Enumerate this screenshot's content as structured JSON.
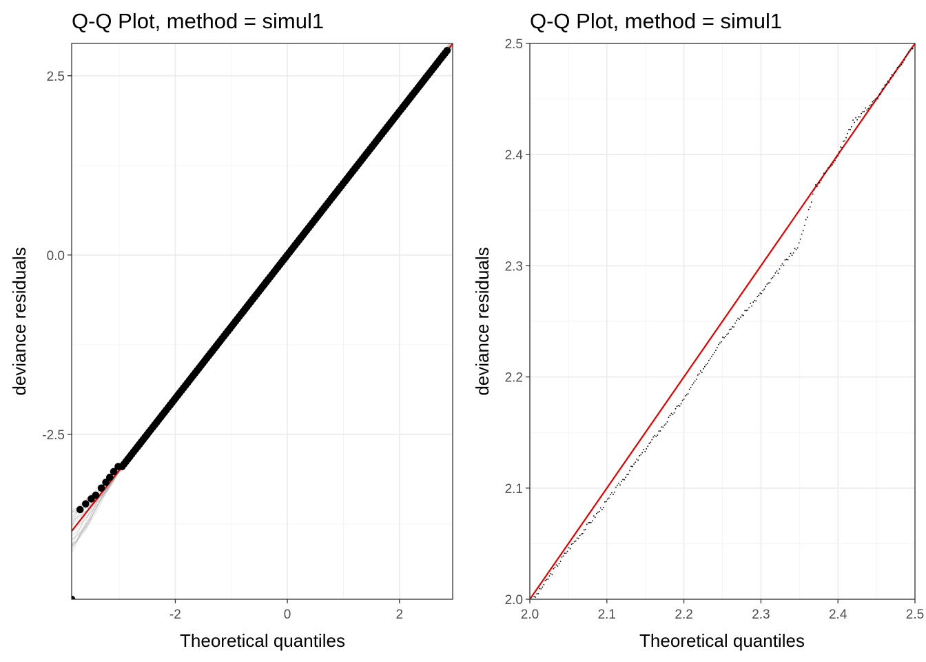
{
  "chart_data": [
    {
      "type": "scatter",
      "title": "Q-Q Plot, method = simul1",
      "xlabel": "Theoretical quantiles",
      "ylabel": "deviance residuals",
      "xlim": [
        -3.85,
        2.95
      ],
      "ylim": [
        -4.8,
        2.95
      ],
      "xticks": [
        -2,
        0,
        2
      ],
      "yticks": [
        2.5,
        0.0,
        -2.5
      ],
      "xtick_labels": [
        "-2",
        "0",
        "2"
      ],
      "ytick_labels": [
        "2.5",
        "0.0",
        "-2.5"
      ],
      "grid": true,
      "reference_line": {
        "slope": 1,
        "intercept": 0,
        "color": "#e00000"
      },
      "simulation_band_color": "#9a9a9a",
      "point_color": "#000000",
      "points": {
        "x": [
          -3.85,
          -3.7,
          -3.6,
          -3.5,
          -3.42,
          -3.32,
          -3.24,
          -3.17,
          -3.1,
          -3.02
        ],
        "y": [
          -4.8,
          -3.55,
          -3.47,
          -3.4,
          -3.35,
          -3.25,
          -3.17,
          -3.1,
          -3.02,
          -2.95
        ],
        "regular_sequence": {
          "from": -2.95,
          "to": 2.85,
          "count": 170,
          "offset": 0.0
        }
      }
    },
    {
      "type": "scatter",
      "title": "Q-Q Plot, method = simul1",
      "xlabel": "Theoretical quantiles",
      "ylabel": "deviance residuals",
      "xlim": [
        2.0,
        2.5
      ],
      "ylim": [
        2.0,
        2.5
      ],
      "xticks": [
        2.0,
        2.1,
        2.2,
        2.3,
        2.4,
        2.5
      ],
      "yticks": [
        2.0,
        2.1,
        2.2,
        2.3,
        2.4,
        2.5
      ],
      "xtick_labels": [
        "2.0",
        "2.1",
        "2.2",
        "2.3",
        "2.4",
        "2.5"
      ],
      "ytick_labels": [
        "2.0",
        "2.1",
        "2.2",
        "2.3",
        "2.4",
        "2.5"
      ],
      "grid": true,
      "reference_line": {
        "slope": 1,
        "intercept": 0,
        "color": "#e00000"
      },
      "point_color": "#000000",
      "points_curve": {
        "x": [
          2.0,
          2.05,
          2.1,
          2.15,
          2.2,
          2.25,
          2.3,
          2.35,
          2.37,
          2.4,
          2.42,
          2.45,
          2.5
        ],
        "y": [
          1.995,
          2.045,
          2.088,
          2.135,
          2.18,
          2.235,
          2.275,
          2.32,
          2.37,
          2.4,
          2.43,
          2.45,
          2.5
        ]
      }
    }
  ]
}
